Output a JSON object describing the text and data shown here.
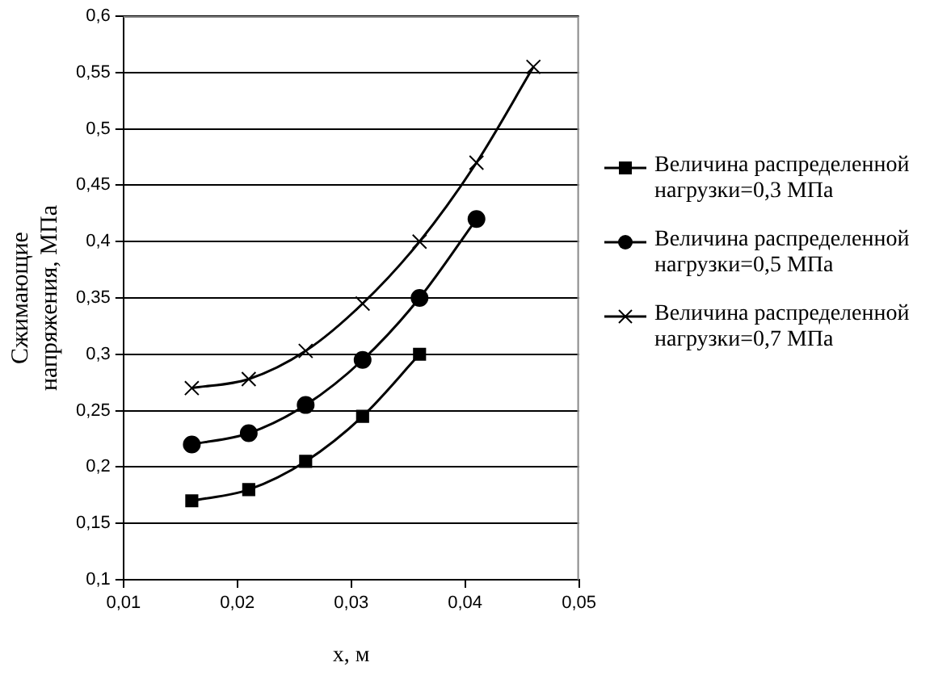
{
  "chart_data": {
    "type": "line",
    "xlabel": "x, м",
    "ylabel": "Сжимающие\nнапряжения, МПа",
    "xlim": [
      0.01,
      0.05
    ],
    "xticks": [
      {
        "value": 0.01,
        "label": "0,01"
      },
      {
        "value": 0.02,
        "label": "0,02"
      },
      {
        "value": 0.03,
        "label": "0,03"
      },
      {
        "value": 0.04,
        "label": "0,04"
      },
      {
        "value": 0.05,
        "label": "0,05"
      }
    ],
    "ylim": [
      0.1,
      0.6
    ],
    "yticks": [
      {
        "value": 0.1,
        "label": "0,1"
      },
      {
        "value": 0.15,
        "label": "0,15"
      },
      {
        "value": 0.2,
        "label": "0,2"
      },
      {
        "value": 0.25,
        "label": "0,25"
      },
      {
        "value": 0.3,
        "label": "0,3"
      },
      {
        "value": 0.35,
        "label": "0,35"
      },
      {
        "value": 0.4,
        "label": "0,4"
      },
      {
        "value": 0.45,
        "label": "0,45"
      },
      {
        "value": 0.5,
        "label": "0,5"
      },
      {
        "value": 0.55,
        "label": "0,55"
      },
      {
        "value": 0.6,
        "label": "0,6"
      }
    ],
    "grid": "y",
    "legend": "right",
    "line_style": "solid",
    "series": [
      {
        "name": "Величина распределенной нагрузки=0,3 МПа",
        "color": "#000000",
        "marker": "square",
        "x": [
          0.016,
          0.021,
          0.026,
          0.031,
          0.036
        ],
        "values": [
          0.17,
          0.18,
          0.205,
          0.245,
          0.3
        ]
      },
      {
        "name": "Величина распределенной нагрузки=0,5 МПа",
        "color": "#000000",
        "marker": "circle",
        "x": [
          0.016,
          0.021,
          0.026,
          0.031,
          0.036,
          0.041
        ],
        "values": [
          0.22,
          0.23,
          0.255,
          0.295,
          0.35,
          0.42
        ]
      },
      {
        "name": "Величина распределенной нагрузки=0,7 МПа",
        "color": "#000000",
        "marker": "cross",
        "x": [
          0.016,
          0.021,
          0.026,
          0.031,
          0.036,
          0.041,
          0.046
        ],
        "values": [
          0.27,
          0.278,
          0.303,
          0.345,
          0.4,
          0.47,
          0.555
        ]
      }
    ]
  }
}
